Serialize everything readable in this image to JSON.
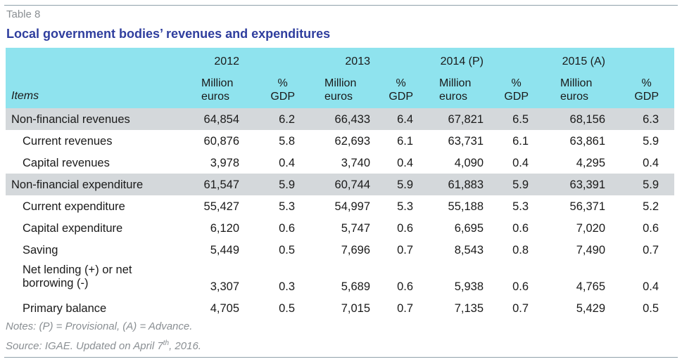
{
  "table_label": "Table 8",
  "title": "Local government bodies’ revenues and expenditures",
  "header": {
    "items_label": "Items",
    "years": [
      "2012",
      "2013",
      "2014 (P)",
      "2015 (A)"
    ],
    "unit_million": [
      "Million",
      "euros"
    ],
    "unit_gdp": [
      "%",
      "GDP"
    ]
  },
  "rows": [
    {
      "label": "Non-financial revenues",
      "values": [
        "64,854",
        "6.2",
        "66,433",
        "6.4",
        "67,821",
        "6.5",
        "68,156",
        "6.3"
      ]
    },
    {
      "label": "Current revenues",
      "values": [
        "60,876",
        "5.8",
        "62,693",
        "6.1",
        "63,731",
        "6.1",
        "63,861",
        "5.9"
      ]
    },
    {
      "label": "Capital revenues",
      "values": [
        "3,978",
        "0.4",
        "3,740",
        "0.4",
        "4,090",
        "0.4",
        "4,295",
        "0.4"
      ]
    },
    {
      "label": "Non-financial expenditure",
      "values": [
        "61,547",
        "5.9",
        "60,744",
        "5.9",
        "61,883",
        "5.9",
        "63,391",
        "5.9"
      ]
    },
    {
      "label": "Current expenditure",
      "values": [
        "55,427",
        "5.3",
        "54,997",
        "5.3",
        "55,188",
        "5.3",
        "56,371",
        "5.2"
      ]
    },
    {
      "label": "Capital expenditure",
      "values": [
        "6,120",
        "0.6",
        "5,747",
        "0.6",
        "6,695",
        "0.6",
        "7,020",
        "0.6"
      ]
    },
    {
      "label": "Saving",
      "values": [
        "5,449",
        "0.5",
        "7,696",
        "0.7",
        "8,543",
        "0.8",
        "7,490",
        "0.7"
      ]
    },
    {
      "label": "Net lending (+) or net borrowing (-)",
      "values": [
        "3,307",
        "0.3",
        "5,689",
        "0.6",
        "5,938",
        "0.6",
        "4,765",
        "0.4"
      ]
    },
    {
      "label": "Primary balance",
      "values": [
        "4,705",
        "0.5",
        "7,015",
        "0.7",
        "7,135",
        "0.7",
        "5,429",
        "0.5"
      ]
    }
  ],
  "notes": {
    "line1": "Notes: (P) = Provisional, (A) = Advance.",
    "line2_prefix": "Source: IGAE. Updated on April 7",
    "line2_sup": "th",
    "line2_suffix": ", 2016."
  },
  "colors": {
    "header_bg": "#8fe3ee",
    "shade_bg": "#d4d8db",
    "title": "#2f3e9e",
    "muted": "#8a8f93"
  }
}
